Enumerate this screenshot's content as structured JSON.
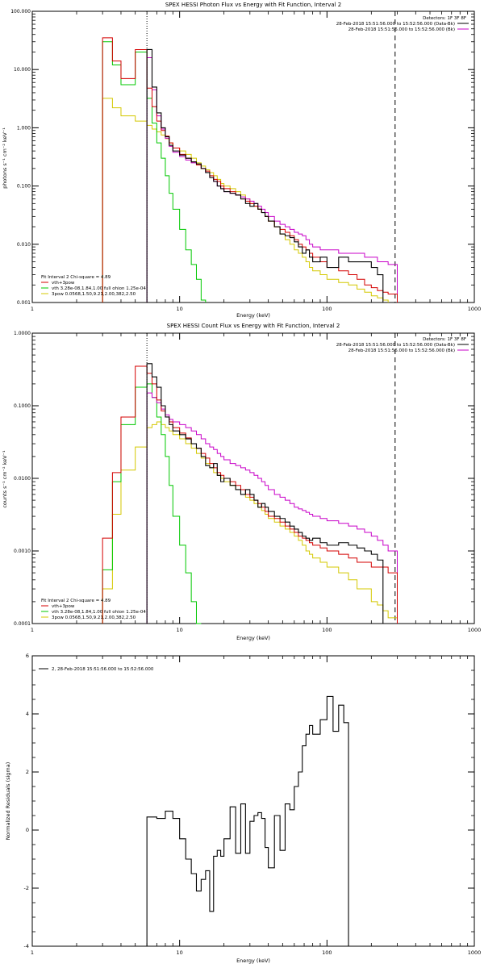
{
  "colors": {
    "data": "#000000",
    "vth_3pow": "#d40000",
    "vth": "#00c800",
    "pow": "#d4c800",
    "bk": "#c800c8"
  },
  "legend_meta": {
    "fit_header": "Fit Interval 2   Chi-square = 4.89",
    "l1": "vth+3pow",
    "l2": "vth 3.28e-08,1.84,1.00  full ohion 1.25e-04",
    "l3": "3pow 0.0568,1.50,9.21,2.00,382,2.50",
    "det": "Detectors: 1F 3F 8F",
    "dline": "28-Feb-2018 15:51:56.000 to 15:52:56.000 (Data-Bk)",
    "bkline": "28-Feb-2018 15:51:56.000 to 15:52:56.000 (Bk)"
  },
  "chart_data": [
    {
      "type": "line",
      "title": "SPEX HESSI Photon Flux vs Energy with Fit Function, Interval 2",
      "xlabel": "Energy (keV)",
      "ylabel": "photons s⁻¹ cm⁻² keV⁻¹",
      "xscale": "log",
      "yscale": "log",
      "xlim": [
        1,
        1000
      ],
      "ylim": [
        0.001,
        100
      ],
      "xticks": [
        "1",
        "10",
        "100",
        "1000"
      ],
      "yticks": [
        "0.001",
        "0.010",
        "0.100",
        "1.000",
        "10.000",
        "100.000"
      ],
      "edges": [
        3,
        3.5,
        4,
        5,
        6,
        6.5,
        7,
        7.5,
        8,
        8.5,
        9,
        10,
        11,
        12,
        13,
        14,
        15,
        16,
        17,
        18,
        19,
        20,
        22,
        24,
        26,
        28,
        30,
        32,
        34,
        36,
        38,
        40,
        44,
        48,
        52,
        56,
        60,
        64,
        68,
        72,
        76,
        80,
        90,
        100,
        120,
        140,
        160,
        180,
        200,
        220,
        240,
        260,
        300
      ],
      "series": [
        {
          "name": "Data",
          "key": "data",
          "start": 4,
          "values": [
            22,
            5,
            1.8,
            1.0,
            0.7,
            0.5,
            0.4,
            0.34,
            0.3,
            0.26,
            0.24,
            0.2,
            0.17,
            0.14,
            0.12,
            0.1,
            0.09,
            0.08,
            0.075,
            0.07,
            0.06,
            0.05,
            0.045,
            0.05,
            0.04,
            0.035,
            0.03,
            0.025,
            0.02,
            0.015,
            0.014,
            0.013,
            0.011,
            0.009,
            0.007,
            0.008,
            0.006,
            0.005,
            0.006,
            0.004,
            0.006,
            0.005,
            0.005,
            0.005,
            0.004,
            0.003
          ]
        },
        {
          "name": "vth+3pow",
          "key": "vth_3pow",
          "start": 0,
          "values": [
            35,
            14,
            7,
            22,
            4.8,
            2.3,
            1.3,
            0.9,
            0.72,
            0.55,
            0.45,
            0.35,
            0.3,
            0.26,
            0.23,
            0.2,
            0.18,
            0.15,
            0.13,
            0.12,
            0.1,
            0.09,
            0.08,
            0.07,
            0.06,
            0.055,
            0.05,
            0.045,
            0.04,
            0.035,
            0.03,
            0.025,
            0.02,
            0.018,
            0.016,
            0.014,
            0.012,
            0.01,
            0.009,
            0.008,
            0.007,
            0.006,
            0.005,
            0.004,
            0.0035,
            0.003,
            0.0025,
            0.002,
            0.0018,
            0.0016,
            0.0015,
            0.0014
          ]
        },
        {
          "name": "vth",
          "key": "vth",
          "start": 0,
          "values": [
            30,
            12,
            5.5,
            20,
            3.2,
            1.2,
            0.55,
            0.3,
            0.15,
            0.075,
            0.04,
            0.018,
            0.008,
            0.0045,
            0.0025,
            0.0011
          ]
        },
        {
          "name": "3pow",
          "key": "pow",
          "start": 0,
          "values": [
            3.2,
            2.2,
            1.6,
            1.3,
            1.1,
            0.95,
            0.85,
            0.75,
            0.65,
            0.55,
            0.45,
            0.4,
            0.35,
            0.3,
            0.25,
            0.22,
            0.19,
            0.17,
            0.15,
            0.13,
            0.11,
            0.1,
            0.09,
            0.08,
            0.07,
            0.06,
            0.05,
            0.045,
            0.04,
            0.035,
            0.03,
            0.025,
            0.02,
            0.015,
            0.012,
            0.01,
            0.008,
            0.007,
            0.006,
            0.005,
            0.004,
            0.0035,
            0.003,
            0.0025,
            0.0022,
            0.002,
            0.0017,
            0.0015,
            0.0013,
            0.0012,
            0.0011
          ]
        },
        {
          "name": "Bk",
          "key": "bk",
          "start": 4,
          "values": [
            16,
            4.5,
            1.6,
            0.95,
            0.66,
            0.48,
            0.38,
            0.32,
            0.28,
            0.25,
            0.23,
            0.2,
            0.17,
            0.14,
            0.12,
            0.1,
            0.09,
            0.08,
            0.075,
            0.07,
            0.065,
            0.06,
            0.055,
            0.05,
            0.045,
            0.04,
            0.035,
            0.03,
            0.025,
            0.022,
            0.02,
            0.018,
            0.016,
            0.015,
            0.014,
            0.012,
            0.01,
            0.009,
            0.008,
            0.008,
            0.007,
            0.007,
            0.007,
            0.006,
            0.006,
            0.005,
            0.005,
            0.0045
          ]
        }
      ],
      "vlines": [
        {
          "x": 6,
          "style": "dotted"
        },
        {
          "x": 290,
          "style": "dashed"
        }
      ]
    },
    {
      "type": "line",
      "title": "SPEX HESSI Count Flux vs Energy with Fit Function, Interval 2",
      "xlabel": "Energy (keV)",
      "ylabel": "counts s⁻¹ cm⁻² keV⁻¹",
      "xscale": "log",
      "yscale": "log",
      "xlim": [
        1,
        1000
      ],
      "ylim": [
        0.0001,
        1
      ],
      "xticks": [
        "1",
        "10",
        "100",
        "1000"
      ],
      "yticks": [
        "0.0001",
        "0.0010",
        "0.0100",
        "0.1000",
        "1.0000"
      ],
      "edges": [
        3,
        3.5,
        4,
        5,
        6,
        6.5,
        7,
        7.5,
        8,
        8.5,
        9,
        10,
        11,
        12,
        13,
        14,
        15,
        16,
        17,
        18,
        19,
        20,
        22,
        24,
        26,
        28,
        30,
        32,
        34,
        36,
        38,
        40,
        44,
        48,
        52,
        56,
        60,
        64,
        68,
        72,
        76,
        80,
        90,
        100,
        120,
        140,
        160,
        180,
        200,
        220,
        240,
        260,
        300
      ],
      "series": [
        {
          "name": "Data",
          "key": "data",
          "start": 4,
          "values": [
            0.38,
            0.25,
            0.18,
            0.1,
            0.07,
            0.055,
            0.045,
            0.04,
            0.035,
            0.03,
            0.026,
            0.02,
            0.015,
            0.014,
            0.016,
            0.011,
            0.009,
            0.01,
            0.008,
            0.007,
            0.006,
            0.007,
            0.006,
            0.005,
            0.004,
            0.0045,
            0.004,
            0.0035,
            0.003,
            0.0028,
            0.0025,
            0.0022,
            0.002,
            0.0018,
            0.0016,
            0.0015,
            0.0014,
            0.0015,
            0.0013,
            0.0012,
            0.0013,
            0.0012,
            0.0011,
            0.001,
            0.0009,
            0.00075
          ]
        },
        {
          "name": "vth+3pow",
          "key": "vth_3pow",
          "start": 0,
          "values": [
            0.0015,
            0.012,
            0.07,
            0.35,
            0.28,
            0.2,
            0.12,
            0.085,
            0.07,
            0.06,
            0.05,
            0.042,
            0.036,
            0.03,
            0.026,
            0.022,
            0.019,
            0.016,
            0.014,
            0.012,
            0.011,
            0.01,
            0.009,
            0.008,
            0.007,
            0.006,
            0.0055,
            0.005,
            0.0045,
            0.004,
            0.0035,
            0.003,
            0.0028,
            0.0025,
            0.0022,
            0.002,
            0.0018,
            0.0016,
            0.0015,
            0.0014,
            0.0013,
            0.0012,
            0.0011,
            0.001,
            0.0009,
            0.0008,
            0.0007,
            0.0007,
            0.0006,
            0.0006,
            0.0006,
            0.0005
          ]
        },
        {
          "name": "vth",
          "key": "vth",
          "start": 0,
          "values": [
            0.00055,
            0.009,
            0.055,
            0.18,
            0.2,
            0.13,
            0.07,
            0.04,
            0.02,
            0.008,
            0.003,
            0.0012,
            0.0005,
            0.0002,
            0.0001
          ]
        },
        {
          "name": "3pow",
          "key": "pow",
          "start": 0,
          "values": [
            0.0003,
            0.0032,
            0.013,
            0.027,
            0.05,
            0.055,
            0.06,
            0.055,
            0.05,
            0.045,
            0.04,
            0.035,
            0.03,
            0.026,
            0.022,
            0.019,
            0.016,
            0.014,
            0.012,
            0.011,
            0.01,
            0.009,
            0.008,
            0.007,
            0.006,
            0.0055,
            0.005,
            0.0045,
            0.004,
            0.0036,
            0.0032,
            0.0028,
            0.0025,
            0.0022,
            0.002,
            0.0018,
            0.0016,
            0.0014,
            0.0012,
            0.001,
            0.0009,
            0.0008,
            0.0007,
            0.0006,
            0.0005,
            0.0004,
            0.0003,
            0.0003,
            0.0002,
            0.00018,
            0.00015,
            0.00012
          ]
        },
        {
          "name": "Bk",
          "key": "bk",
          "start": 4,
          "values": [
            0.15,
            0.13,
            0.11,
            0.09,
            0.075,
            0.065,
            0.06,
            0.055,
            0.05,
            0.045,
            0.04,
            0.035,
            0.03,
            0.027,
            0.025,
            0.022,
            0.02,
            0.018,
            0.016,
            0.015,
            0.014,
            0.013,
            0.012,
            0.011,
            0.01,
            0.009,
            0.008,
            0.007,
            0.006,
            0.0055,
            0.005,
            0.0045,
            0.004,
            0.0038,
            0.0036,
            0.0034,
            0.0032,
            0.003,
            0.0028,
            0.0026,
            0.0024,
            0.0022,
            0.002,
            0.0018,
            0.0016,
            0.0014,
            0.0012,
            0.001
          ]
        }
      ],
      "vlines": [
        {
          "x": 6,
          "style": "dotted"
        },
        {
          "x": 290,
          "style": "dashed"
        }
      ]
    },
    {
      "type": "line",
      "title": "",
      "xlabel": "Energy (keV)",
      "ylabel": "Normalized Residuals (sigma)",
      "xscale": "log",
      "yscale": "linear",
      "xlim": [
        1,
        1000
      ],
      "ylim": [
        -4,
        6
      ],
      "xticks": [
        "1",
        "10",
        "100",
        "1000"
      ],
      "yticks": [
        "-4",
        "-2",
        "0",
        "2",
        "4",
        "6"
      ],
      "legend": "2, 28-Feb-2018 15:51:56.000 to 15:52:56.000",
      "edges": [
        6,
        7,
        8,
        9,
        10,
        11,
        12,
        13,
        14,
        15,
        16,
        17,
        18,
        19,
        20,
        22,
        24,
        26,
        28,
        30,
        32,
        34,
        36,
        38,
        40,
        44,
        48,
        52,
        56,
        60,
        64,
        68,
        72,
        76,
        80,
        90,
        100,
        110,
        120,
        130,
        140,
        150,
        160,
        170,
        180,
        190,
        200,
        220,
        240,
        260,
        290
      ],
      "series": [
        {
          "name": "2, 28-Feb-2018 15:51:56.000 to 15:52:56.000",
          "key": "data",
          "start": 0,
          "values": [
            0.45,
            0.4,
            0.65,
            0.4,
            -0.3,
            -1.0,
            -1.5,
            -2.1,
            -1.7,
            -1.4,
            -2.8,
            -0.9,
            -0.7,
            -0.9,
            -0.3,
            0.8,
            -0.8,
            0.9,
            -0.8,
            0.3,
            0.5,
            0.6,
            0.4,
            -0.6,
            -1.3,
            0.5,
            -0.7,
            0.9,
            0.7,
            1.5,
            2.0,
            2.9,
            3.3,
            3.6,
            3.3,
            3.8,
            4.6,
            3.4,
            4.3,
            3.7
          ]
        }
      ]
    }
  ]
}
